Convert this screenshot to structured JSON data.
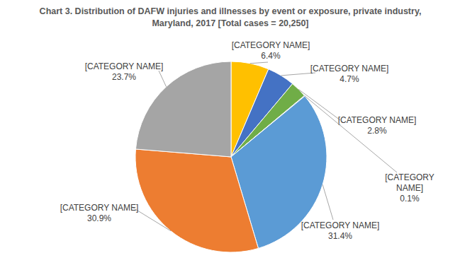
{
  "chart_data": {
    "type": "pie",
    "title": "Chart 3. Distribution of DAFW injuries and illnesses by event or exposure, private industry, Maryland, 2017 [Total cases = 20,250]",
    "categories": [
      "[CATEGORY NAME]",
      "[CATEGORY NAME]",
      "[CATEGORY NAME]",
      "[CATEGORY NAME]",
      "[CATEGORY NAME]",
      "[CATEGORY NAME]",
      "[CATEGORY NAME]"
    ],
    "values": [
      6.4,
      4.7,
      2.8,
      0.1,
      31.4,
      30.9,
      23.7
    ],
    "value_labels": [
      "6.4%",
      "4.7%",
      "2.8%",
      "0.1%",
      "31.4%",
      "30.9%",
      "23.7%"
    ],
    "colors": [
      "#FFC000",
      "#4472C4",
      "#70AD47",
      "#264478",
      "#5B9BD5",
      "#ED7D31",
      "#A5A5A5"
    ],
    "data_labels": true
  }
}
